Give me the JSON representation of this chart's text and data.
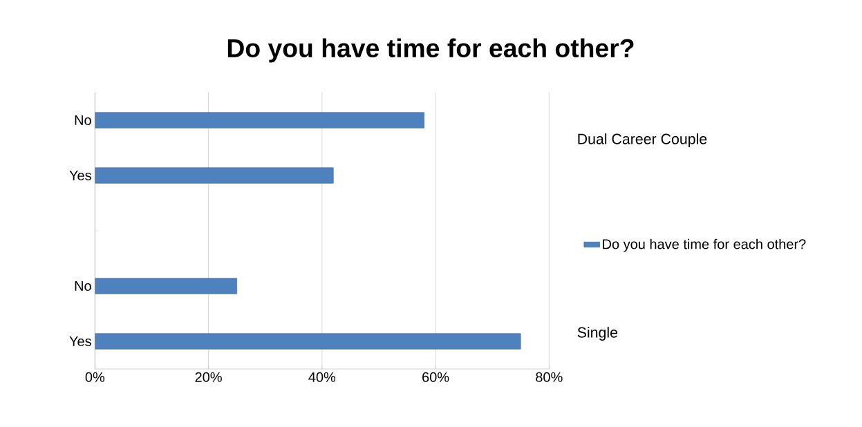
{
  "chart_data": {
    "type": "bar",
    "orientation": "horizontal",
    "title": "Do you have time for each other?",
    "categories": [
      "No",
      "Yes",
      null,
      "No",
      "Yes"
    ],
    "series": [
      {
        "name": "Do you have time for each other?",
        "color": "#4f81bd",
        "values": [
          58,
          42,
          null,
          25,
          75
        ]
      }
    ],
    "xlim": [
      0,
      80
    ],
    "xticks": [
      {
        "value": 0,
        "label": "0%"
      },
      {
        "value": 20,
        "label": "20%"
      },
      {
        "value": 40,
        "label": "40%"
      },
      {
        "value": 60,
        "label": "60%"
      },
      {
        "value": 80,
        "label": "80%"
      }
    ],
    "grid": "x",
    "legend": "right",
    "annotations": [
      "Dual Career Couple",
      "Single"
    ]
  }
}
